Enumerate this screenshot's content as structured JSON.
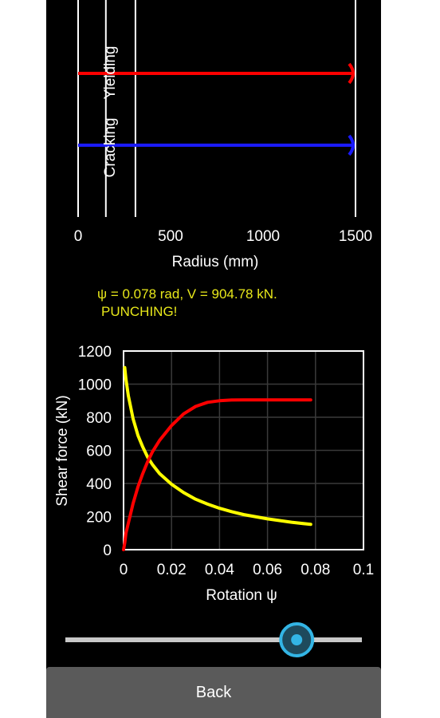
{
  "status": {
    "line1": "ψ = 0.078 rad, V = 904.78 kN.",
    "line2": "PUNCHING!"
  },
  "top_chart": {
    "xlabel": "Radius (mm)",
    "ylabel_cracking": "Cracking",
    "ylabel_yielding": "Yielding",
    "x_ticks": [
      "0",
      "500",
      "1000",
      "1500"
    ]
  },
  "bottom_chart": {
    "xlabel": "Rotation ψ",
    "ylabel": "Shear force (kN)",
    "x_ticks": [
      "0",
      "0.02",
      "0.04",
      "0.06",
      "0.08",
      "0.1"
    ],
    "y_ticks": [
      "0",
      "200",
      "400",
      "600",
      "800",
      "1000",
      "1200"
    ]
  },
  "slider": {
    "value": 0.78
  },
  "back_button": {
    "label": "Back"
  },
  "colors": {
    "yielding": "#ff0000",
    "cracking": "#1a1aff",
    "capacity_curve": "#ffff00",
    "load_curve": "#ff0000",
    "slider_thumb": "#33b5e5"
  },
  "chart_data": [
    {
      "type": "line",
      "xlabel": "Radius (mm)",
      "ylabel": "Cracking  Yielding",
      "xlim": [
        0,
        1500
      ],
      "x_ticks": [
        0,
        500,
        1000,
        1500
      ],
      "vertical_lines": [
        0,
        150,
        310,
        1500
      ],
      "series": [
        {
          "name": "Yielding",
          "x": [
            0,
            1500
          ],
          "y": [
            1,
            1
          ]
        },
        {
          "name": "Cracking",
          "x": [
            0,
            1500
          ],
          "y": [
            0,
            0
          ]
        }
      ]
    },
    {
      "type": "line",
      "xlabel": "Rotation ψ",
      "ylabel": "Shear force (kN)",
      "xlim": [
        0,
        0.1
      ],
      "ylim": [
        0,
        1200
      ],
      "grid": true,
      "x": [
        0.0005,
        0.001,
        0.002,
        0.004,
        0.006,
        0.008,
        0.01,
        0.012,
        0.015,
        0.02,
        0.025,
        0.03,
        0.035,
        0.04,
        0.045,
        0.05,
        0.06,
        0.07,
        0.078
      ],
      "series": [
        {
          "values": [
            1100,
            1030,
            930,
            790,
            690,
            620,
            560,
            515,
            460,
            395,
            345,
            305,
            275,
            250,
            230,
            212,
            186,
            166,
            153
          ]
        },
        {
          "values": [
            40,
            100,
            160,
            280,
            380,
            460,
            530,
            590,
            660,
            750,
            820,
            865,
            890,
            900,
            904,
            905,
            905,
            905,
            905
          ]
        }
      ]
    }
  ]
}
